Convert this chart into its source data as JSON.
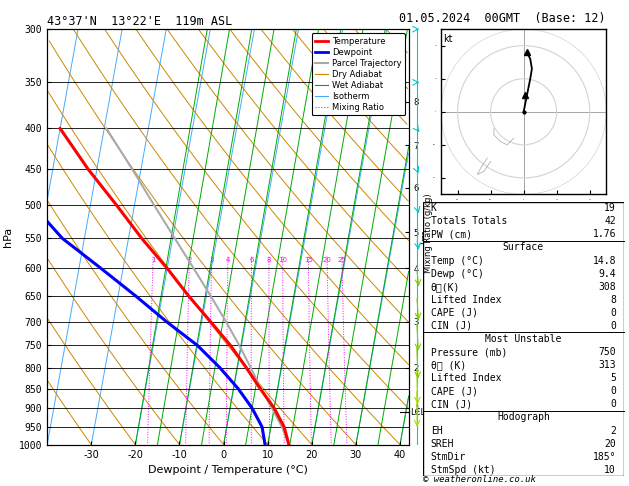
{
  "title_left": "43°37'N  13°22'E  119m ASL",
  "title_right": "01.05.2024  00GMT  (Base: 12)",
  "xlabel": "Dewpoint / Temperature (°C)",
  "ylabel_left": "hPa",
  "pressure_levels": [
    300,
    350,
    400,
    450,
    500,
    550,
    600,
    650,
    700,
    750,
    800,
    850,
    900,
    950,
    1000
  ],
  "pressure_labels": [
    "300",
    "350",
    "400",
    "450",
    "500",
    "550",
    "600",
    "650",
    "700",
    "750",
    "800",
    "850",
    "900",
    "950",
    "1000"
  ],
  "xlim": [
    -40,
    42
  ],
  "p_min": 300,
  "p_max": 1000,
  "skew_scale": 32.5,
  "temp_profile_t": [
    14.8,
    13.0,
    10.0,
    6.0,
    2.0,
    -2.5,
    -8.0,
    -14.0,
    -20.0,
    -27.0,
    -34.0,
    -42.0,
    -50.0
  ],
  "temp_profile_p": [
    1000,
    950,
    900,
    850,
    800,
    750,
    700,
    650,
    600,
    550,
    500,
    450,
    400
  ],
  "dewp_profile_t": [
    9.4,
    8.0,
    5.0,
    1.0,
    -4.0,
    -10.0,
    -18.0,
    -26.0,
    -35.0,
    -45.0,
    -53.0,
    -60.0,
    -66.0
  ],
  "dewp_profile_p": [
    1000,
    950,
    900,
    850,
    800,
    750,
    700,
    650,
    600,
    550,
    500,
    450,
    400
  ],
  "parcel_t": [
    14.8,
    12.5,
    9.5,
    6.2,
    3.0,
    -0.5,
    -4.5,
    -9.0,
    -14.0,
    -19.5,
    -25.5,
    -32.0,
    -39.5
  ],
  "parcel_p": [
    1000,
    950,
    900,
    850,
    800,
    750,
    700,
    650,
    600,
    550,
    500,
    450,
    400
  ],
  "lcl_pressure": 910,
  "mixing_ratio_values": [
    1,
    2,
    3,
    4,
    6,
    8,
    10,
    15,
    20,
    25
  ],
  "mixing_ratio_label_p": 590,
  "km_ticks": [
    1,
    2,
    3,
    4,
    5,
    6,
    7,
    8
  ],
  "km_pressures": [
    900,
    800,
    700,
    600,
    540,
    475,
    420,
    370
  ],
  "wind_speeds": [
    10,
    10,
    10,
    10,
    15,
    15,
    20,
    20,
    25,
    25,
    20,
    20,
    15,
    15,
    10
  ],
  "wind_dirs": [
    185,
    185,
    190,
    190,
    200,
    210,
    220,
    230,
    240,
    250,
    255,
    260,
    265,
    270,
    270
  ],
  "wind_p_levels": [
    1000,
    950,
    900,
    850,
    800,
    750,
    700,
    650,
    600,
    550,
    500,
    450,
    400,
    350,
    300
  ],
  "sounding_data": {
    "K": 19,
    "Totals_Totals": 42,
    "PW_cm": 1.76,
    "Surface_Temp": 14.8,
    "Surface_Dewp": 9.4,
    "Surface_Theta_e": 308,
    "Surface_Lifted_Index": 8,
    "Surface_CAPE": 0,
    "Surface_CIN": 0,
    "MU_Pressure": 750,
    "MU_Theta_e": 313,
    "MU_Lifted_Index": 5,
    "MU_CAPE": 0,
    "MU_CIN": 0,
    "EH": 2,
    "SREH": 20,
    "StmDir": 185,
    "StmSpd": 10
  },
  "bg_color": "#ffffff",
  "temp_color": "#ff0000",
  "dewp_color": "#0000ff",
  "parcel_color": "#aaaaaa",
  "dry_adiabat_color": "#cc8800",
  "wet_adiabat_color": "#00aa00",
  "isotherm_color": "#44aaff",
  "mixing_ratio_color": "#ff00ff",
  "wind_barb_color": "#00cccc",
  "wind_barb_color2": "#aadd00"
}
